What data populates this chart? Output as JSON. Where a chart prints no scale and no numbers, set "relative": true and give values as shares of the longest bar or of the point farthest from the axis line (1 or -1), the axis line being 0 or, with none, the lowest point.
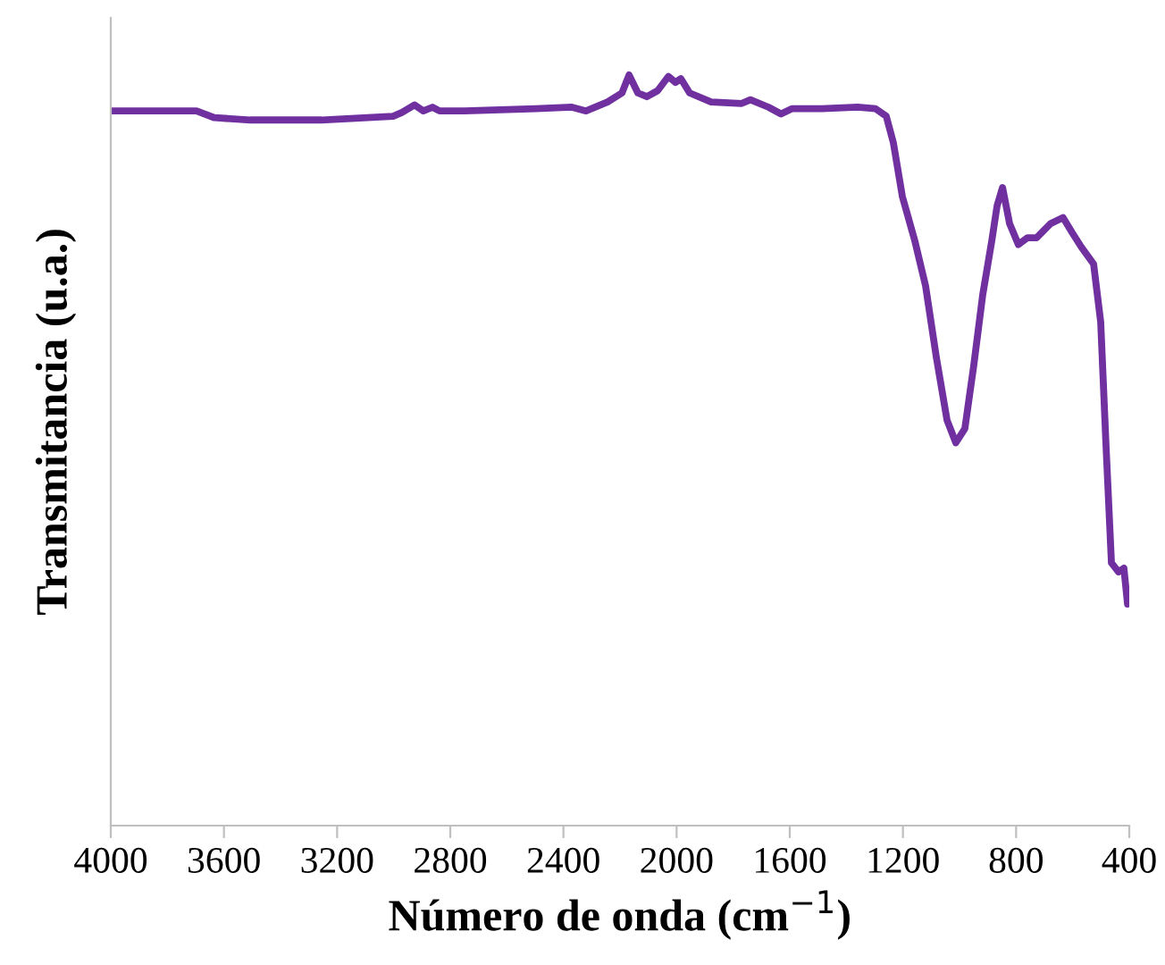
{
  "chart_data": {
    "type": "line",
    "relative": true,
    "xlabel": "Número de onda (cm$^{−1}$)",
    "ylabel": "Transmitancia (u.a.)",
    "xlim": [
      4000,
      400
    ],
    "xticks": [
      4000,
      3600,
      3200,
      2800,
      2400,
      2000,
      1600,
      1200,
      800,
      400
    ],
    "grid": false,
    "legend": false,
    "marker": "none",
    "line_style": "solid",
    "series": [
      {
        "color": "#7030a0",
        "x": [
          4000,
          3760,
          3697,
          3634,
          3507,
          3255,
          3002,
          2971,
          2926,
          2895,
          2863,
          2838,
          2749,
          2497,
          2370,
          2320,
          2244,
          2193,
          2168,
          2137,
          2105,
          2067,
          2029,
          2004,
          1985,
          1954,
          1878,
          1770,
          1739,
          1675,
          1631,
          1593,
          1486,
          1360,
          1297,
          1259,
          1234,
          1202,
          1158,
          1120,
          1082,
          1044,
          1013,
          981,
          950,
          918,
          886,
          867,
          848,
          823,
          792,
          760,
          728,
          678,
          634,
          602,
          570,
          526,
          501,
          482,
          463,
          438,
          419,
          406,
          400
        ],
        "values": [
          0.952,
          0.952,
          0.952,
          0.943,
          0.94,
          0.94,
          0.945,
          0.95,
          0.96,
          0.952,
          0.957,
          0.952,
          0.952,
          0.955,
          0.957,
          0.952,
          0.964,
          0.976,
          1.0,
          0.976,
          0.971,
          0.979,
          0.998,
          0.99,
          0.995,
          0.976,
          0.964,
          0.962,
          0.967,
          0.957,
          0.948,
          0.955,
          0.955,
          0.957,
          0.955,
          0.945,
          0.91,
          0.838,
          0.779,
          0.719,
          0.624,
          0.54,
          0.51,
          0.529,
          0.612,
          0.707,
          0.779,
          0.826,
          0.85,
          0.802,
          0.774,
          0.783,
          0.783,
          0.802,
          0.81,
          0.79,
          0.771,
          0.748,
          0.671,
          0.505,
          0.35,
          0.338,
          0.343,
          0.295,
          0.302
        ]
      }
    ]
  }
}
